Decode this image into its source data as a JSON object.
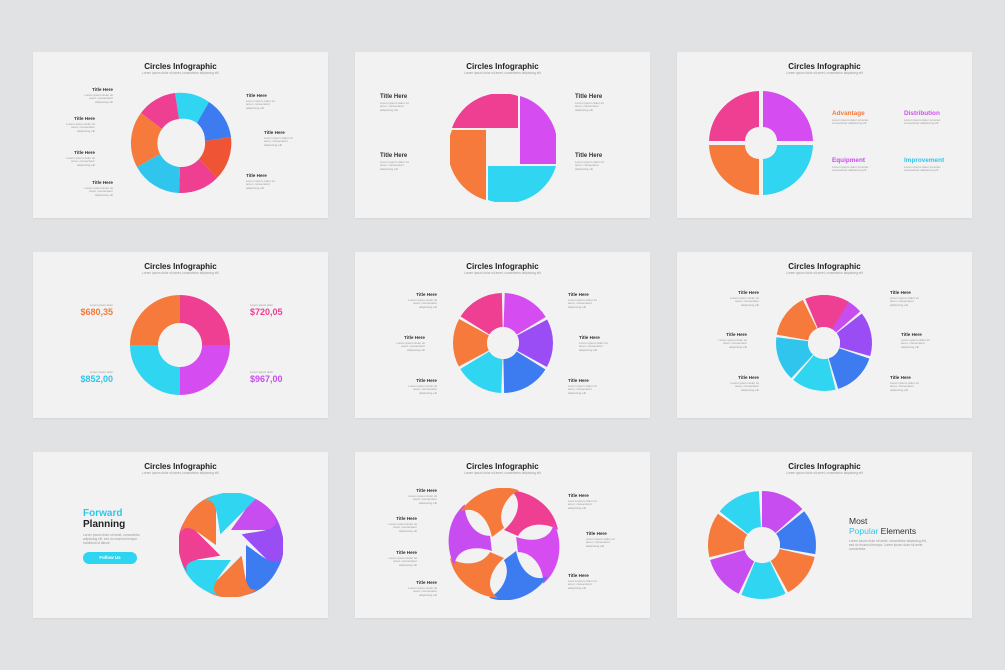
{
  "page": {
    "background": "#e1e2e4",
    "slide_background": "#f2f2f2"
  },
  "palette": {
    "pink": "#ee3f92",
    "magenta": "#d54df0",
    "purple": "#9b4df5",
    "blue": "#3c7cf0",
    "cyan": "#2fd5f1",
    "orange": "#f57a3b",
    "red_orange": "#ef5535"
  },
  "slides": [
    {
      "title": "Circles Infographic",
      "subtitle": "Lorem ipsum dolor sit amet, consectetur adipiscing elit",
      "left_labels": [
        {
          "title": "Title Here",
          "desc": "Lorem ipsum dolor sit amet, consectetur adipiscing elit"
        },
        {
          "title": "Title Here",
          "desc": "Lorem ipsum dolor sit amet, consectetur adipiscing elit"
        },
        {
          "title": "Title Here",
          "desc": "Lorem ipsum dolor sit amet, consectetur adipiscing elit"
        },
        {
          "title": "Title Here",
          "desc": "Lorem ipsum dolor sit amet, consectetur adipiscing elit"
        }
      ],
      "right_labels": [
        {
          "title": "Title Here",
          "desc": "Lorem ipsum dolor sit amet, consectetur adipiscing elit"
        },
        {
          "title": "Title Here",
          "desc": "Lorem ipsum dolor sit amet, consectetur adipiscing elit"
        },
        {
          "title": "Title Here",
          "desc": "Lorem ipsum dolor sit amet, consectetur adipiscing elit"
        }
      ]
    },
    {
      "title": "Circles Infographic",
      "subtitle": "Lorem ipsum dolor sit amet, consectetur adipiscing elit",
      "left_labels": [
        {
          "title": "Title Here",
          "desc": "Lorem ipsum dolor sit amet, consectetur adipiscing elit"
        },
        {
          "title": "Title Here",
          "desc": "Lorem ipsum dolor sit amet, consectetur adipiscing elit"
        }
      ],
      "right_labels": [
        {
          "title": "Title Here",
          "desc": "Lorem ipsum dolor sit amet, consectetur adipiscing elit"
        },
        {
          "title": "Title Here",
          "desc": "Lorem ipsum dolor sit amet, consectetur adipiscing elit"
        }
      ]
    },
    {
      "title": "Circles Infographic",
      "subtitle": "Lorem ipsum dolor sit amet, consectetur adipiscing elit",
      "categories": [
        {
          "title": "Advantage",
          "color": "#f57a3b",
          "desc": "Lorem ipsum dolor sit amet, consectetur adipiscing elit"
        },
        {
          "title": "Distribution",
          "color": "#d54df0",
          "desc": "Lorem ipsum dolor sit amet, consectetur adipiscing elit"
        },
        {
          "title": "Equipment",
          "color": "#c74df0",
          "desc": "Lorem ipsum dolor sit amet, consectetur adipiscing elit"
        },
        {
          "title": "Improvement",
          "color": "#2fc5ec",
          "desc": "Lorem ipsum dolor sit amet, consectetur adipiscing elit"
        }
      ]
    },
    {
      "title": "Circles Infographic",
      "subtitle": "Lorem ipsum dolor sit amet, consectetur adipiscing elit",
      "values": [
        {
          "small": "Lorem ipsum dolor",
          "value": "$680,35",
          "color": "#f57a3b"
        },
        {
          "small": "Lorem ipsum dolor",
          "value": "$720,05",
          "color": "#ee3f92"
        },
        {
          "small": "Lorem ipsum dolor",
          "value": "$852,00",
          "color": "#2fc5ec"
        },
        {
          "small": "Lorem ipsum dolor",
          "value": "$967,00",
          "color": "#c74df0"
        }
      ]
    },
    {
      "title": "Circles Infographic",
      "subtitle": "Lorem ipsum dolor sit amet, consectetur adipiscing elit",
      "left_labels": [
        {
          "title": "Title Here",
          "desc": "Lorem ipsum dolor sit amet, consectetur adipiscing elit"
        },
        {
          "title": "Title Here",
          "desc": "Lorem ipsum dolor sit amet, consectetur adipiscing elit"
        },
        {
          "title": "Title Here",
          "desc": "Lorem ipsum dolor sit amet, consectetur adipiscing elit"
        }
      ],
      "right_labels": [
        {
          "title": "Title Here",
          "desc": "Lorem ipsum dolor sit amet, consectetur adipiscing elit"
        },
        {
          "title": "Title Here",
          "desc": "Lorem ipsum dolor sit amet, consectetur adipiscing elit"
        },
        {
          "title": "Title Here",
          "desc": "Lorem ipsum dolor sit amet, consectetur adipiscing elit"
        }
      ]
    },
    {
      "title": "Circles Infographic",
      "subtitle": "Lorem ipsum dolor sit amet, consectetur adipiscing elit",
      "left_labels": [
        {
          "title": "Title Here",
          "desc": "Lorem ipsum dolor sit amet, consectetur adipiscing elit"
        },
        {
          "title": "Title Here",
          "desc": "Lorem ipsum dolor sit amet, consectetur adipiscing elit"
        },
        {
          "title": "Title Here",
          "desc": "Lorem ipsum dolor sit amet, consectetur adipiscing elit"
        }
      ],
      "right_labels": [
        {
          "title": "Title Here",
          "desc": "Lorem ipsum dolor sit amet, consectetur adipiscing elit"
        },
        {
          "title": "Title Here",
          "desc": "Lorem ipsum dolor sit amet, consectetur adipiscing elit"
        },
        {
          "title": "Title Here",
          "desc": "Lorem ipsum dolor sit amet, consectetur adipiscing elit"
        }
      ]
    },
    {
      "title": "Circles Infographic",
      "subtitle": "Lorem ipsum dolor sit amet, consectetur adipiscing elit",
      "heading_1": "Forward",
      "heading_2": "Planning",
      "desc": "Lorem ipsum dolor sit amet, consectetur adipiscing elit, sed do eiusmod tempor incididunt ut labore",
      "button": "Follow Us"
    },
    {
      "title": "Circles Infographic",
      "subtitle": "Lorem ipsum dolor sit amet, consectetur adipiscing elit",
      "left_labels": [
        {
          "title": "Title Here",
          "desc": "Lorem ipsum dolor sit amet, consectetur adipiscing elit"
        },
        {
          "title": "Title Here",
          "desc": "Lorem ipsum dolor sit amet, consectetur adipiscing elit"
        },
        {
          "title": "Title Here",
          "desc": "Lorem ipsum dolor sit amet, consectetur adipiscing elit"
        },
        {
          "title": "Title Here",
          "desc": "Lorem ipsum dolor sit amet, consectetur adipiscing elit"
        }
      ],
      "right_labels": [
        {
          "title": "Title Here",
          "desc": "Lorem ipsum dolor sit amet, consectetur adipiscing elit"
        },
        {
          "title": "Title Here",
          "desc": "Lorem ipsum dolor sit amet, consectetur adipiscing elit"
        },
        {
          "title": "Title Here",
          "desc": "Lorem ipsum dolor sit amet, consectetur adipiscing elit"
        }
      ]
    },
    {
      "title": "Circles Infographic",
      "subtitle": "Lorem ipsum dolor sit amet, consectetur adipiscing elit",
      "heading_1": "Most",
      "heading_2a": "Popular",
      "heading_2b": " Elements",
      "desc": "Lorem ipsum dolor sit amet, consectetur adipiscing elit, sed do eiusmod tempor. Lorem ipsum dolor sit amet consectetur"
    }
  ]
}
